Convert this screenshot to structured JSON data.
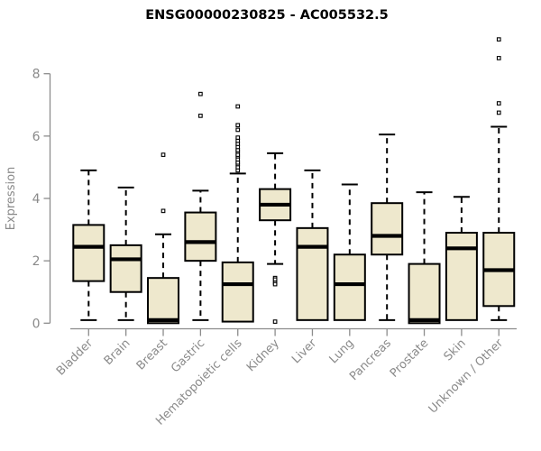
{
  "chart_data": {
    "type": "boxplot",
    "title": "ENSG00000230825 - AC005532.5",
    "ylabel": "Expression",
    "xlabel": "",
    "y_axis_range": [
      0,
      8
    ],
    "yticks": [
      0,
      2,
      4,
      6,
      8
    ],
    "grid": false,
    "legend": "none",
    "categories": [
      "Bladder",
      "Brain",
      "Breast",
      "Gastric",
      "Hematopoietic cells",
      "Kidney",
      "Liver",
      "Lung",
      "Pancreas",
      "Prostate",
      "Skin",
      "Unknown / Other"
    ],
    "series": [
      {
        "category": "Bladder",
        "whisker_low": 0.1,
        "q1": 1.35,
        "median": 2.45,
        "q3": 3.15,
        "whisker_high": 4.9,
        "outliers": []
      },
      {
        "category": "Brain",
        "whisker_low": 0.1,
        "q1": 1.0,
        "median": 2.05,
        "q3": 2.5,
        "whisker_high": 4.35,
        "outliers": []
      },
      {
        "category": "Breast",
        "whisker_low": 0.0,
        "q1": 0.0,
        "median": 0.1,
        "q3": 1.45,
        "whisker_high": 2.85,
        "outliers": [
          3.6,
          5.4
        ]
      },
      {
        "category": "Gastric",
        "whisker_low": 0.1,
        "q1": 2.0,
        "median": 2.6,
        "q3": 3.55,
        "whisker_high": 4.25,
        "outliers": [
          6.65,
          7.35
        ]
      },
      {
        "category": "Hematopoietic cells",
        "whisker_low": 0.05,
        "q1": 0.05,
        "median": 1.25,
        "q3": 1.95,
        "whisker_high": 4.8,
        "outliers": [
          4.9,
          5.0,
          5.1,
          5.15,
          5.25,
          5.35,
          5.4,
          5.5,
          5.55,
          5.65,
          5.75,
          5.85,
          5.95,
          6.2,
          6.35,
          6.95
        ]
      },
      {
        "category": "Kidney",
        "whisker_low": 1.9,
        "q1": 3.3,
        "median": 3.8,
        "q3": 4.3,
        "whisker_high": 5.45,
        "outliers": [
          1.45,
          1.4,
          1.3,
          1.25,
          0.05
        ]
      },
      {
        "category": "Liver",
        "whisker_low": 0.1,
        "q1": 0.1,
        "median": 2.45,
        "q3": 3.05,
        "whisker_high": 4.9,
        "outliers": []
      },
      {
        "category": "Lung",
        "whisker_low": 0.1,
        "q1": 0.1,
        "median": 1.25,
        "q3": 2.2,
        "whisker_high": 4.45,
        "outliers": []
      },
      {
        "category": "Pancreas",
        "whisker_low": 0.1,
        "q1": 2.2,
        "median": 2.8,
        "q3": 3.85,
        "whisker_high": 6.05,
        "outliers": []
      },
      {
        "category": "Prostate",
        "whisker_low": 0.0,
        "q1": 0.0,
        "median": 0.1,
        "q3": 1.9,
        "whisker_high": 4.2,
        "outliers": []
      },
      {
        "category": "Skin",
        "whisker_low": 0.1,
        "q1": 0.1,
        "median": 2.4,
        "q3": 2.9,
        "whisker_high": 4.05,
        "outliers": []
      },
      {
        "category": "Unknown / Other",
        "whisker_low": 0.1,
        "q1": 0.55,
        "median": 1.7,
        "q3": 2.9,
        "whisker_high": 6.3,
        "outliers": [
          6.75,
          7.05,
          8.5,
          9.1
        ]
      }
    ],
    "colors": {
      "box_fill": "#EEE8CD",
      "box_stroke": "#000000",
      "median": "#000000",
      "outlier_stroke": "#000000",
      "outlier_fill": "#FFFFFF",
      "axis": "#8C8C8C",
      "tick_label": "#8A8A8A",
      "title": "#000000"
    }
  }
}
